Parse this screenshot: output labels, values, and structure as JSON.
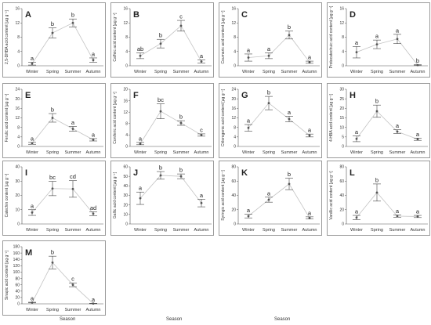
{
  "x_axis_title": "Season",
  "chart_data": [
    {
      "type": "line",
      "panel": "A",
      "ylabel": "2,5-DHBA acid content [µg g⁻¹]",
      "ylim": [
        0,
        16
      ],
      "yticks": [
        0,
        4,
        8,
        12,
        16
      ],
      "categories": [
        "Winter",
        "Spring",
        "Summer",
        "Autumn"
      ],
      "values": [
        0.6,
        9.2,
        12.0,
        1.6
      ],
      "errors": [
        0.4,
        1.4,
        1.1,
        0.6
      ],
      "letters": [
        "a",
        "b",
        "b",
        "a"
      ]
    },
    {
      "type": "line",
      "panel": "B",
      "ylabel": "Caffeic acid content [µg g⁻¹]",
      "ylim": [
        0,
        16
      ],
      "yticks": [
        0,
        4,
        8,
        12,
        16
      ],
      "categories": [
        "Winter",
        "Spring",
        "Summer",
        "Autumn"
      ],
      "values": [
        2.8,
        6.2,
        11.2,
        1.2
      ],
      "errors": [
        0.8,
        1.2,
        1.5,
        0.4
      ],
      "letters": [
        "ab",
        "b",
        "c",
        "a"
      ]
    },
    {
      "type": "line",
      "panel": "C",
      "ylabel": "Coumaric acid content [µg g⁻¹]",
      "ylim": [
        0,
        16
      ],
      "yticks": [
        0,
        4,
        8,
        12,
        16
      ],
      "categories": [
        "Winter",
        "Spring",
        "Summer",
        "Autumn"
      ],
      "values": [
        2.3,
        2.8,
        8.6,
        1.0
      ],
      "errors": [
        1.0,
        0.8,
        1.1,
        0.3
      ],
      "letters": [
        "a",
        "a",
        "b",
        "a"
      ]
    },
    {
      "type": "line",
      "panel": "D",
      "ylabel": "Protocatechuic acid content [µg g⁻¹]",
      "ylim": [
        0,
        16
      ],
      "yticks": [
        0,
        4,
        8,
        12,
        16
      ],
      "categories": [
        "Winter",
        "Spring",
        "Summer",
        "Autumn"
      ],
      "values": [
        3.8,
        6.0,
        7.5,
        0.2
      ],
      "errors": [
        1.6,
        1.2,
        1.3,
        0.1
      ],
      "letters": [
        "a",
        "a",
        "a",
        "b"
      ]
    },
    {
      "type": "line",
      "panel": "E",
      "ylabel": "Ferulic acid content [µg g⁻¹]",
      "ylim": [
        0,
        24
      ],
      "yticks": [
        0,
        4,
        8,
        12,
        16,
        20,
        24
      ],
      "categories": [
        "Winter",
        "Spring",
        "Summer",
        "Autumn"
      ],
      "values": [
        1.3,
        12.0,
        7.4,
        2.8
      ],
      "errors": [
        0.4,
        1.8,
        1.0,
        0.5
      ],
      "letters": [
        "a",
        "b",
        "a",
        "a"
      ]
    },
    {
      "type": "line",
      "panel": "F",
      "ylabel": "Coniferic acid content [µg g⁻¹]",
      "ylim": [
        0,
        20
      ],
      "yticks": [
        0,
        4,
        8,
        12,
        16,
        20
      ],
      "categories": [
        "Winter",
        "Spring",
        "Summer",
        "Autumn"
      ],
      "values": [
        1.0,
        12.3,
        8.2,
        4.0
      ],
      "errors": [
        0.4,
        2.6,
        0.8,
        0.4
      ],
      "letters": [
        "a",
        "bc",
        "b",
        "c"
      ]
    },
    {
      "type": "line",
      "panel": "G",
      "ylabel": "Chlorogenic acid content [µg g⁻¹]",
      "ylim": [
        0,
        24
      ],
      "yticks": [
        0,
        4,
        8,
        12,
        16,
        20,
        24
      ],
      "categories": [
        "Winter",
        "Spring",
        "Summer",
        "Autumn"
      ],
      "values": [
        7.8,
        18.2,
        11.5,
        4.6
      ],
      "errors": [
        1.4,
        2.8,
        1.2,
        0.6
      ],
      "letters": [
        "a",
        "b",
        "a",
        "a"
      ]
    },
    {
      "type": "line",
      "panel": "H",
      "ylabel": "4-HBA acid content [µg g⁻¹]",
      "ylim": [
        0,
        30
      ],
      "yticks": [
        0,
        5,
        10,
        15,
        20,
        25,
        30
      ],
      "categories": [
        "Winter",
        "Spring",
        "Summer",
        "Autumn"
      ],
      "values": [
        4.0,
        18.5,
        7.8,
        3.8
      ],
      "errors": [
        1.5,
        3.2,
        1.0,
        0.6
      ],
      "letters": [
        "a",
        "b",
        "a",
        "a"
      ]
    },
    {
      "type": "line",
      "panel": "I",
      "ylabel": "Catechin content [µg g⁻¹]",
      "ylim": [
        0,
        40
      ],
      "yticks": [
        0,
        10,
        20,
        30,
        40
      ],
      "categories": [
        "Winter",
        "Spring",
        "Summer",
        "Autumn"
      ],
      "values": [
        8.0,
        24.8,
        24.5,
        7.2
      ],
      "errors": [
        2.0,
        5.0,
        5.8,
        1.4
      ],
      "letters": [
        "a",
        "bc",
        "cd",
        "ad"
      ]
    },
    {
      "type": "line",
      "panel": "J",
      "ylabel": "Gallic acid content [µg g⁻¹]",
      "ylim": [
        0,
        60
      ],
      "yticks": [
        0,
        10,
        20,
        30,
        40,
        50,
        60
      ],
      "categories": [
        "Winter",
        "Spring",
        "Summer",
        "Autumn"
      ],
      "values": [
        27.0,
        51.0,
        50.0,
        22.0
      ],
      "errors": [
        6.5,
        4.0,
        2.5,
        4.0
      ],
      "letters": [
        "a",
        "b",
        "b",
        "a"
      ]
    },
    {
      "type": "line",
      "panel": "K",
      "ylabel": "Syringic acid content [µg g⁻¹]",
      "ylim": [
        0,
        80
      ],
      "yticks": [
        0,
        20,
        40,
        60,
        80
      ],
      "categories": [
        "Winter",
        "Spring",
        "Summer",
        "Autumn"
      ],
      "values": [
        11.0,
        34.0,
        56.0,
        8.5
      ],
      "errors": [
        2.5,
        3.5,
        8.0,
        1.5
      ],
      "letters": [
        "a",
        "a",
        "b",
        "a"
      ]
    },
    {
      "type": "line",
      "panel": "L",
      "ylabel": "Vanillic acid content [µg g⁻¹]",
      "ylim": [
        0,
        80
      ],
      "yticks": [
        0,
        20,
        40,
        60,
        80
      ],
      "categories": [
        "Winter",
        "Spring",
        "Summer",
        "Autumn"
      ],
      "values": [
        9.0,
        44.0,
        11.0,
        10.5
      ],
      "errors": [
        3.0,
        12.0,
        1.5,
        1.5
      ],
      "letters": [
        "a",
        "b",
        "a",
        "a"
      ]
    },
    {
      "type": "line",
      "panel": "M",
      "ylabel": "Sinapic acid content [µg g⁻¹]",
      "ylim": [
        0,
        180
      ],
      "yticks": [
        0,
        20,
        40,
        60,
        80,
        100,
        120,
        140,
        160,
        180
      ],
      "categories": [
        "Winter",
        "Spring",
        "Summer",
        "Autumn"
      ],
      "values": [
        4.0,
        130.0,
        60.0,
        1.0
      ],
      "errors": [
        1.0,
        20.0,
        6.0,
        0.5
      ],
      "letters": [
        "a",
        "b",
        "c",
        "a"
      ]
    }
  ]
}
